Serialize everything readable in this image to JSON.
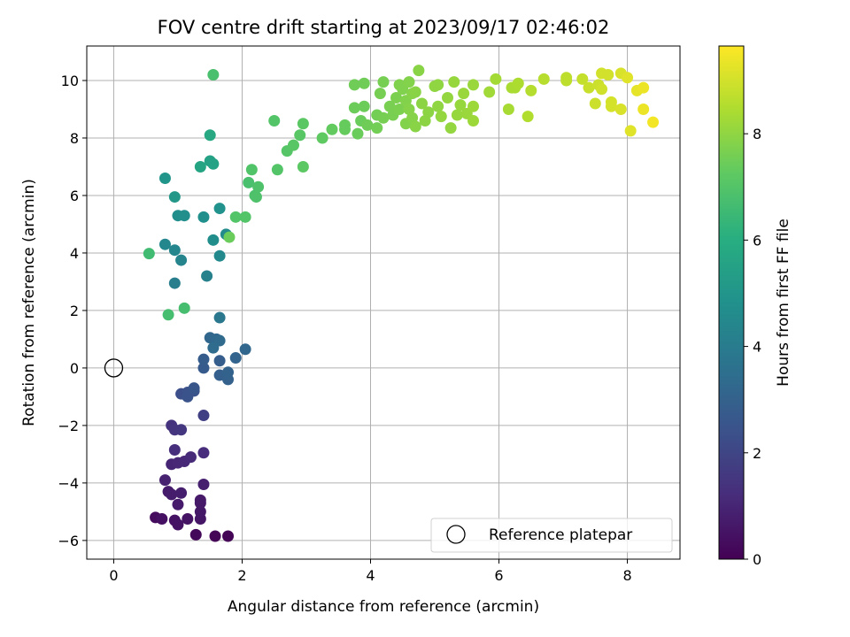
{
  "chart_data": {
    "type": "scatter",
    "title": "FOV centre drift starting at 2023/09/17 02:46:02",
    "xlabel": "Angular distance from reference (arcmin)",
    "ylabel": "Rotation from reference (arcmin)",
    "xlim": [
      -0.42,
      8.82
    ],
    "ylim": [
      -6.65,
      11.2
    ],
    "xticks": [
      0,
      2,
      4,
      6,
      8
    ],
    "yticks": [
      -6,
      -4,
      -2,
      0,
      2,
      4,
      6,
      8,
      10
    ],
    "xtick_labels": [
      "0",
      "2",
      "4",
      "6",
      "8"
    ],
    "ytick_labels": [
      "−6",
      "−4",
      "−2",
      "0",
      "2",
      "4",
      "6",
      "8",
      "10"
    ],
    "grid": true,
    "colorbar": {
      "label": "Hours from first FF file",
      "colormap": "viridis",
      "range": [
        0,
        9.65
      ],
      "ticks": [
        0,
        2,
        4,
        6,
        8
      ],
      "tick_labels": [
        "0",
        "2",
        "4",
        "6",
        "8"
      ]
    },
    "legend": {
      "placement": "lower-right",
      "entries": [
        {
          "label": "Reference platepar",
          "marker": "open-circle",
          "color": "#000000"
        }
      ]
    },
    "reference_point": {
      "x": 0,
      "y": 0
    },
    "points": [
      {
        "x": 1.58,
        "y": -5.85,
        "t": 0.1
      },
      {
        "x": 1.78,
        "y": -5.85,
        "t": 0.1
      },
      {
        "x": 1.28,
        "y": -5.8,
        "t": 0.2
      },
      {
        "x": 0.65,
        "y": -5.2,
        "t": 0.3
      },
      {
        "x": 0.75,
        "y": -5.25,
        "t": 0.4
      },
      {
        "x": 0.95,
        "y": -5.3,
        "t": 0.45
      },
      {
        "x": 1.0,
        "y": -5.45,
        "t": 0.5
      },
      {
        "x": 1.15,
        "y": -5.25,
        "t": 0.5
      },
      {
        "x": 1.35,
        "y": -5.25,
        "t": 0.55
      },
      {
        "x": 1.35,
        "y": -5.0,
        "t": 0.6
      },
      {
        "x": 1.35,
        "y": -4.7,
        "t": 0.65
      },
      {
        "x": 1.35,
        "y": -4.6,
        "t": 0.65
      },
      {
        "x": 1.0,
        "y": -4.75,
        "t": 0.7
      },
      {
        "x": 0.85,
        "y": -4.3,
        "t": 0.7
      },
      {
        "x": 0.9,
        "y": -4.4,
        "t": 0.75
      },
      {
        "x": 1.05,
        "y": -4.35,
        "t": 0.8
      },
      {
        "x": 1.4,
        "y": -4.05,
        "t": 0.85
      },
      {
        "x": 0.8,
        "y": -3.9,
        "t": 0.9
      },
      {
        "x": 0.9,
        "y": -3.35,
        "t": 1.0
      },
      {
        "x": 1.0,
        "y": -3.3,
        "t": 1.05
      },
      {
        "x": 1.1,
        "y": -3.25,
        "t": 1.1
      },
      {
        "x": 1.2,
        "y": -3.1,
        "t": 1.15
      },
      {
        "x": 1.4,
        "y": -2.95,
        "t": 1.2
      },
      {
        "x": 0.95,
        "y": -2.85,
        "t": 1.25
      },
      {
        "x": 0.9,
        "y": -2.0,
        "t": 1.4
      },
      {
        "x": 0.95,
        "y": -2.15,
        "t": 1.45
      },
      {
        "x": 1.05,
        "y": -2.15,
        "t": 1.5
      },
      {
        "x": 1.4,
        "y": -1.65,
        "t": 1.8
      },
      {
        "x": 1.05,
        "y": -0.9,
        "t": 2.3
      },
      {
        "x": 1.15,
        "y": -0.85,
        "t": 2.4
      },
      {
        "x": 1.25,
        "y": -0.8,
        "t": 2.45
      },
      {
        "x": 1.15,
        "y": -1.0,
        "t": 2.5
      },
      {
        "x": 1.25,
        "y": -0.7,
        "t": 2.55
      },
      {
        "x": 1.4,
        "y": 0.0,
        "t": 2.7
      },
      {
        "x": 1.4,
        "y": 0.3,
        "t": 2.8
      },
      {
        "x": 1.65,
        "y": 0.25,
        "t": 2.85
      },
      {
        "x": 1.65,
        "y": -0.25,
        "t": 2.9
      },
      {
        "x": 1.78,
        "y": -0.4,
        "t": 3.0
      },
      {
        "x": 1.78,
        "y": -0.15,
        "t": 3.05
      },
      {
        "x": 1.9,
        "y": 0.35,
        "t": 3.1
      },
      {
        "x": 2.05,
        "y": 0.65,
        "t": 3.2
      },
      {
        "x": 1.5,
        "y": 1.05,
        "t": 3.2
      },
      {
        "x": 1.6,
        "y": 1.0,
        "t": 3.25
      },
      {
        "x": 1.65,
        "y": 0.95,
        "t": 3.3
      },
      {
        "x": 1.55,
        "y": 0.7,
        "t": 3.4
      },
      {
        "x": 1.65,
        "y": 1.75,
        "t": 3.8
      },
      {
        "x": 0.95,
        "y": 2.95,
        "t": 4.1
      },
      {
        "x": 1.45,
        "y": 3.2,
        "t": 4.2
      },
      {
        "x": 1.05,
        "y": 3.75,
        "t": 4.3
      },
      {
        "x": 0.95,
        "y": 4.1,
        "t": 4.4
      },
      {
        "x": 0.8,
        "y": 4.3,
        "t": 4.45
      },
      {
        "x": 1.65,
        "y": 3.9,
        "t": 4.5
      },
      {
        "x": 1.75,
        "y": 4.65,
        "t": 4.6
      },
      {
        "x": 1.55,
        "y": 4.45,
        "t": 4.7
      },
      {
        "x": 1.0,
        "y": 5.3,
        "t": 4.7
      },
      {
        "x": 1.1,
        "y": 5.3,
        "t": 4.75
      },
      {
        "x": 1.4,
        "y": 5.25,
        "t": 4.8
      },
      {
        "x": 1.65,
        "y": 5.55,
        "t": 4.85
      },
      {
        "x": 0.8,
        "y": 6.6,
        "t": 5.0
      },
      {
        "x": 0.95,
        "y": 5.95,
        "t": 5.1
      },
      {
        "x": 1.5,
        "y": 7.2,
        "t": 5.5
      },
      {
        "x": 1.55,
        "y": 7.1,
        "t": 5.55
      },
      {
        "x": 1.35,
        "y": 7.0,
        "t": 5.6
      },
      {
        "x": 1.5,
        "y": 8.1,
        "t": 5.8
      },
      {
        "x": 0.55,
        "y": 3.98,
        "t": 6.6
      },
      {
        "x": 0.85,
        "y": 1.85,
        "t": 6.7
      },
      {
        "x": 1.1,
        "y": 2.08,
        "t": 6.7
      },
      {
        "x": 1.55,
        "y": 10.2,
        "t": 6.8
      },
      {
        "x": 2.1,
        "y": 6.45,
        "t": 6.8
      },
      {
        "x": 2.2,
        "y": 6.0,
        "t": 6.85
      },
      {
        "x": 2.25,
        "y": 6.3,
        "t": 6.9
      },
      {
        "x": 2.22,
        "y": 5.95,
        "t": 6.9
      },
      {
        "x": 2.15,
        "y": 6.9,
        "t": 6.95
      },
      {
        "x": 1.9,
        "y": 5.25,
        "t": 7.0
      },
      {
        "x": 2.05,
        "y": 5.25,
        "t": 7.0
      },
      {
        "x": 1.8,
        "y": 4.55,
        "t": 7.4
      },
      {
        "x": 2.55,
        "y": 6.9,
        "t": 7.0
      },
      {
        "x": 2.7,
        "y": 7.55,
        "t": 7.05
      },
      {
        "x": 2.8,
        "y": 7.75,
        "t": 7.1
      },
      {
        "x": 2.9,
        "y": 8.1,
        "t": 7.1
      },
      {
        "x": 2.95,
        "y": 8.5,
        "t": 7.15
      },
      {
        "x": 2.5,
        "y": 8.6,
        "t": 7.0
      },
      {
        "x": 2.95,
        "y": 7.0,
        "t": 7.2
      },
      {
        "x": 3.25,
        "y": 8.0,
        "t": 7.25
      },
      {
        "x": 3.4,
        "y": 8.3,
        "t": 7.3
      },
      {
        "x": 3.6,
        "y": 8.3,
        "t": 7.35
      },
      {
        "x": 3.6,
        "y": 8.45,
        "t": 7.35
      },
      {
        "x": 3.8,
        "y": 8.15,
        "t": 7.4
      },
      {
        "x": 3.85,
        "y": 8.6,
        "t": 7.4
      },
      {
        "x": 3.9,
        "y": 9.1,
        "t": 7.45
      },
      {
        "x": 3.75,
        "y": 9.05,
        "t": 7.45
      },
      {
        "x": 3.9,
        "y": 9.9,
        "t": 7.5
      },
      {
        "x": 3.75,
        "y": 9.85,
        "t": 7.5
      },
      {
        "x": 3.95,
        "y": 8.45,
        "t": 7.5
      },
      {
        "x": 4.1,
        "y": 8.35,
        "t": 7.55
      },
      {
        "x": 4.1,
        "y": 8.8,
        "t": 7.55
      },
      {
        "x": 4.2,
        "y": 8.7,
        "t": 7.6
      },
      {
        "x": 4.15,
        "y": 9.55,
        "t": 7.6
      },
      {
        "x": 4.2,
        "y": 9.95,
        "t": 7.6
      },
      {
        "x": 4.3,
        "y": 9.1,
        "t": 7.65
      },
      {
        "x": 4.35,
        "y": 8.8,
        "t": 7.65
      },
      {
        "x": 4.4,
        "y": 9.4,
        "t": 7.7
      },
      {
        "x": 4.45,
        "y": 9.0,
        "t": 7.7
      },
      {
        "x": 4.5,
        "y": 9.7,
        "t": 7.75
      },
      {
        "x": 4.45,
        "y": 9.85,
        "t": 7.75
      },
      {
        "x": 4.55,
        "y": 8.5,
        "t": 7.8
      },
      {
        "x": 4.55,
        "y": 9.3,
        "t": 7.8
      },
      {
        "x": 4.6,
        "y": 9.95,
        "t": 7.8
      },
      {
        "x": 4.6,
        "y": 9.0,
        "t": 7.85
      },
      {
        "x": 4.65,
        "y": 8.7,
        "t": 7.85
      },
      {
        "x": 4.65,
        "y": 9.55,
        "t": 7.85
      },
      {
        "x": 4.7,
        "y": 9.6,
        "t": 7.9
      },
      {
        "x": 4.7,
        "y": 8.4,
        "t": 7.9
      },
      {
        "x": 4.75,
        "y": 10.35,
        "t": 7.9
      },
      {
        "x": 4.8,
        "y": 9.2,
        "t": 7.95
      },
      {
        "x": 4.85,
        "y": 8.6,
        "t": 7.95
      },
      {
        "x": 4.9,
        "y": 8.9,
        "t": 7.95
      },
      {
        "x": 5.0,
        "y": 9.8,
        "t": 8.0
      },
      {
        "x": 5.05,
        "y": 9.85,
        "t": 8.0
      },
      {
        "x": 5.05,
        "y": 9.1,
        "t": 8.0
      },
      {
        "x": 5.1,
        "y": 8.75,
        "t": 8.05
      },
      {
        "x": 5.2,
        "y": 9.4,
        "t": 8.05
      },
      {
        "x": 5.25,
        "y": 8.35,
        "t": 8.05
      },
      {
        "x": 5.3,
        "y": 9.95,
        "t": 8.1
      },
      {
        "x": 5.35,
        "y": 8.8,
        "t": 8.1
      },
      {
        "x": 5.4,
        "y": 9.15,
        "t": 8.1
      },
      {
        "x": 5.45,
        "y": 9.55,
        "t": 8.15
      },
      {
        "x": 5.5,
        "y": 8.85,
        "t": 8.15
      },
      {
        "x": 5.6,
        "y": 9.85,
        "t": 8.15
      },
      {
        "x": 5.6,
        "y": 9.1,
        "t": 8.2
      },
      {
        "x": 5.6,
        "y": 8.6,
        "t": 8.2
      },
      {
        "x": 5.85,
        "y": 9.6,
        "t": 8.25
      },
      {
        "x": 5.95,
        "y": 10.05,
        "t": 8.3
      },
      {
        "x": 6.15,
        "y": 9.0,
        "t": 8.35
      },
      {
        "x": 6.2,
        "y": 9.75,
        "t": 8.4
      },
      {
        "x": 6.25,
        "y": 9.75,
        "t": 8.4
      },
      {
        "x": 6.3,
        "y": 9.9,
        "t": 8.45
      },
      {
        "x": 6.45,
        "y": 8.75,
        "t": 8.5
      },
      {
        "x": 6.5,
        "y": 9.65,
        "t": 8.55
      },
      {
        "x": 6.7,
        "y": 10.05,
        "t": 8.6
      },
      {
        "x": 7.05,
        "y": 10.0,
        "t": 8.7
      },
      {
        "x": 7.05,
        "y": 10.1,
        "t": 8.7
      },
      {
        "x": 7.3,
        "y": 10.05,
        "t": 8.8
      },
      {
        "x": 7.4,
        "y": 9.75,
        "t": 8.85
      },
      {
        "x": 7.5,
        "y": 9.2,
        "t": 8.9
      },
      {
        "x": 7.55,
        "y": 9.85,
        "t": 8.9
      },
      {
        "x": 7.6,
        "y": 9.7,
        "t": 8.95
      },
      {
        "x": 7.6,
        "y": 10.25,
        "t": 9.0
      },
      {
        "x": 7.7,
        "y": 10.2,
        "t": 9.0
      },
      {
        "x": 7.75,
        "y": 9.25,
        "t": 9.05
      },
      {
        "x": 7.75,
        "y": 9.1,
        "t": 9.05
      },
      {
        "x": 7.9,
        "y": 9.0,
        "t": 9.1
      },
      {
        "x": 7.9,
        "y": 10.25,
        "t": 9.1
      },
      {
        "x": 8.0,
        "y": 10.1,
        "t": 9.2
      },
      {
        "x": 8.05,
        "y": 8.25,
        "t": 9.2
      },
      {
        "x": 8.15,
        "y": 9.65,
        "t": 9.3
      },
      {
        "x": 8.25,
        "y": 9.75,
        "t": 9.4
      },
      {
        "x": 8.25,
        "y": 9.0,
        "t": 9.4
      },
      {
        "x": 8.4,
        "y": 8.55,
        "t": 9.5
      }
    ]
  }
}
